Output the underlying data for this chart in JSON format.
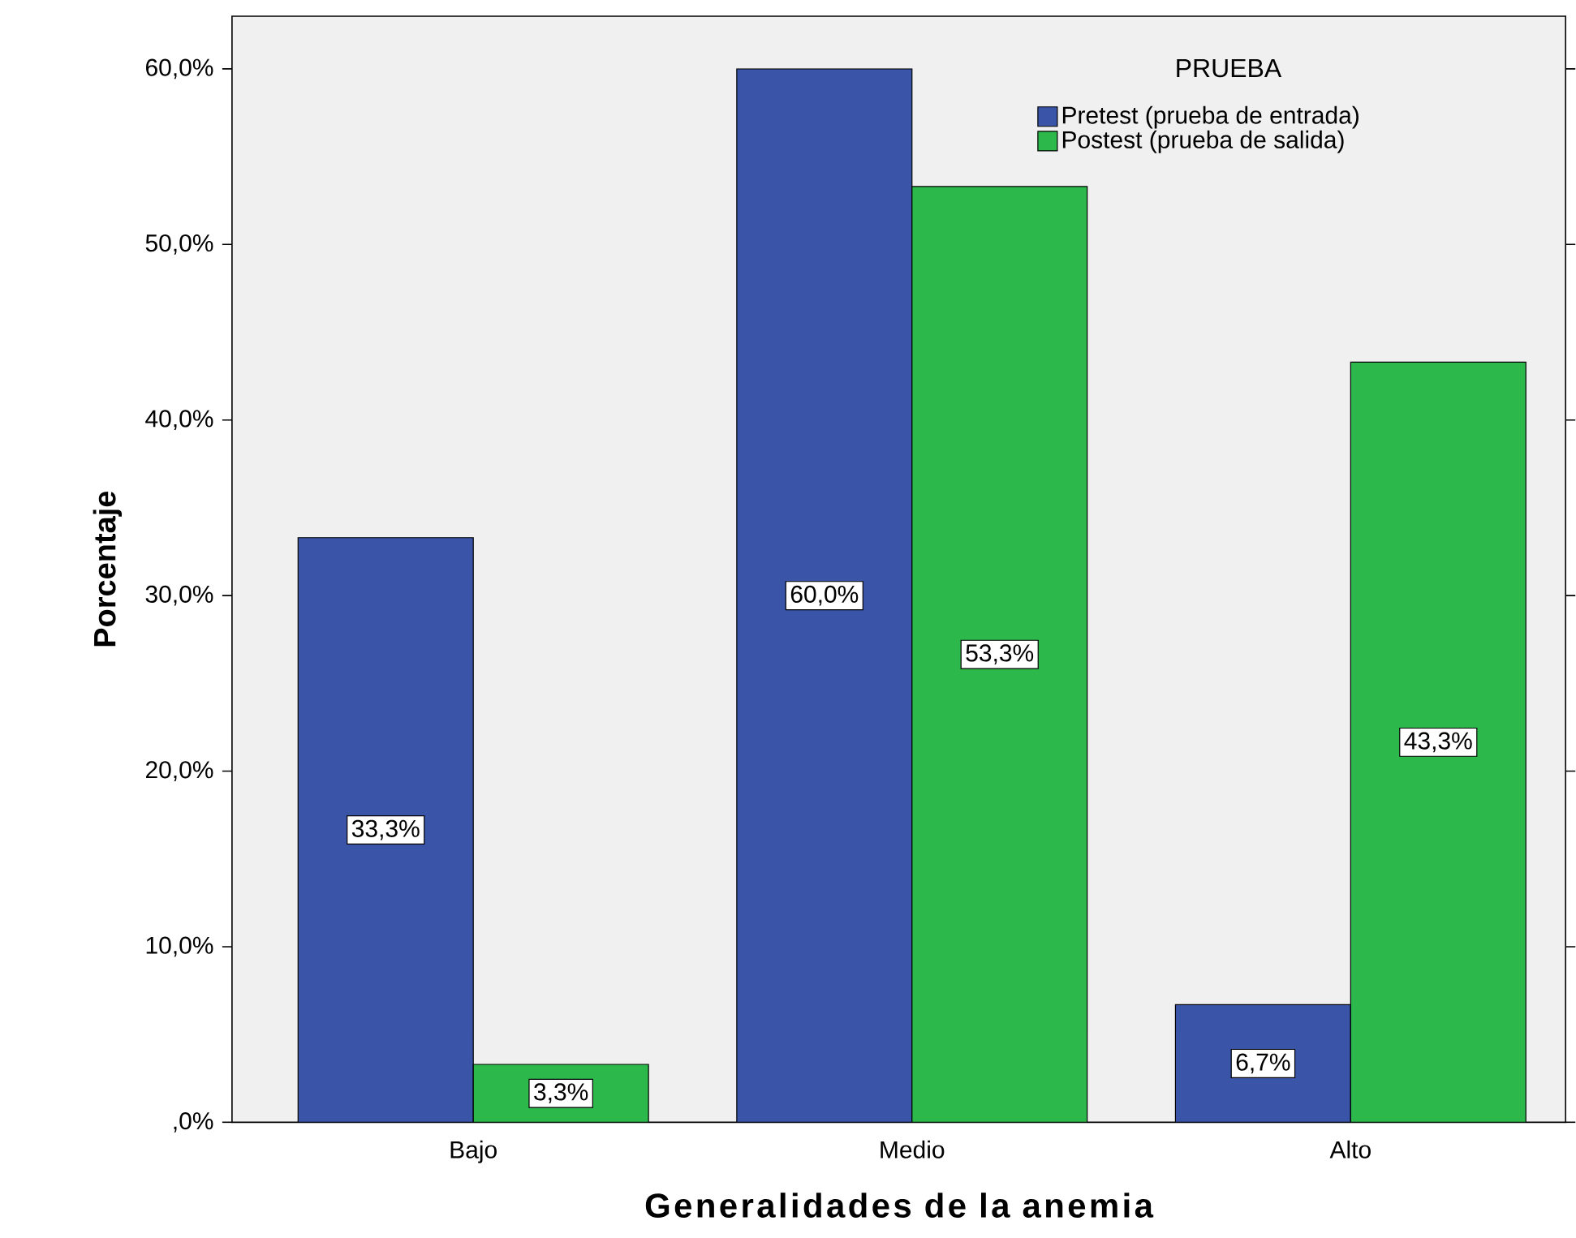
{
  "chart_data": {
    "type": "bar",
    "xlabel": "Generalidades de la anemia",
    "ylabel": "Porcentaje",
    "legend_title": "PRUEBA",
    "legend": "top right",
    "categories": [
      "Bajo",
      "Medio",
      "Alto"
    ],
    "series": [
      {
        "name": "Pretest (prueba de entrada)",
        "color": "#3a55a8",
        "values": [
          33.3,
          60.0,
          6.7
        ],
        "value_labels": [
          "33,3%",
          "60,0%",
          "6,7%"
        ]
      },
      {
        "name": "Postest (prueba de salida)",
        "color": "#2db84b",
        "values": [
          3.3,
          53.3,
          43.3
        ],
        "value_labels": [
          "3,3%",
          "53,3%",
          "43,3%"
        ]
      }
    ],
    "ylim": [
      0,
      63
    ],
    "yticks": [
      {
        "value": 0,
        "label": ",0%"
      },
      {
        "value": 10,
        "label": "10,0%"
      },
      {
        "value": 20,
        "label": "20,0%"
      },
      {
        "value": 30,
        "label": "30,0%"
      },
      {
        "value": 40,
        "label": "40,0%"
      },
      {
        "value": 50,
        "label": "50,0%"
      },
      {
        "value": 60,
        "label": "60,0%"
      }
    ]
  }
}
